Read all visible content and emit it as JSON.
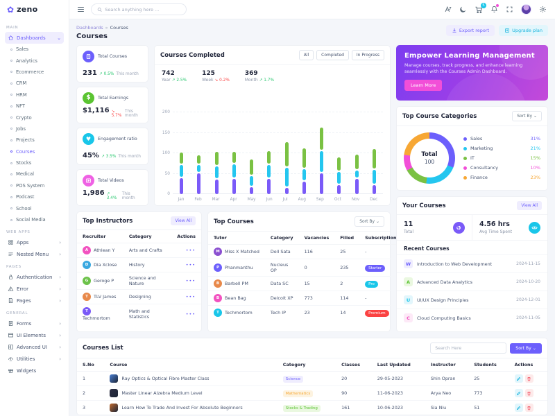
{
  "brand": {
    "name": "zeno"
  },
  "header": {
    "search_placeholder": "Search anything here ...",
    "cart_badge": "5"
  },
  "breadcrumb": {
    "root": "Dashboards",
    "separator": "»",
    "current": "Courses"
  },
  "page": {
    "title": "Courses",
    "export_label": "Export report",
    "upgrade_label": "Upgrade plan"
  },
  "sidebar": {
    "sections": [
      {
        "label": "MAIN",
        "items": [
          {
            "label": "Dashboards",
            "icon": "home",
            "active": true,
            "chevron": "down",
            "children": [
              "Sales",
              "Analytics",
              "Ecommerce",
              "CRM",
              "HRM",
              "NFT",
              "Crypto",
              "Jobs",
              "Projects",
              "Courses",
              "Stocks",
              "Medical",
              "POS System",
              "Podcast",
              "School",
              "Social Media"
            ],
            "active_child": "Courses"
          }
        ]
      },
      {
        "label": "WEB APPS",
        "items": [
          {
            "label": "Apps",
            "icon": "apps",
            "chevron": "right"
          },
          {
            "label": "Nested Menu",
            "icon": "nested",
            "chevron": "right"
          }
        ]
      },
      {
        "label": "PAGES",
        "items": [
          {
            "label": "Authentication",
            "icon": "lock",
            "chevron": "right"
          },
          {
            "label": "Error",
            "icon": "error",
            "chevron": "right"
          },
          {
            "label": "Pages",
            "icon": "pages",
            "chevron": "right"
          }
        ]
      },
      {
        "label": "GENERAL",
        "items": [
          {
            "label": "Forms",
            "icon": "forms",
            "chevron": "right"
          },
          {
            "label": "UI Elements",
            "icon": "ui",
            "chevron": "right"
          },
          {
            "label": "Advanced UI",
            "icon": "advui",
            "chevron": "right"
          },
          {
            "label": "Utilities",
            "icon": "utils",
            "chevron": "right"
          },
          {
            "label": "Widgets",
            "icon": "widgets",
            "chevron": ""
          }
        ]
      }
    ]
  },
  "stats": [
    {
      "title": "Total Courses",
      "value": "231",
      "change": "0.5%",
      "direction": "up",
      "period": "This month",
      "color": "#6c5ffc",
      "icon": "doc"
    },
    {
      "title": "Total Earnings",
      "value": "$1,116",
      "change": "5.7%",
      "direction": "down",
      "period": "This month",
      "color": "#5bc432",
      "icon": "dollar"
    },
    {
      "title": "Engagement ratio",
      "value": "45%",
      "change": "3.5%",
      "direction": "up",
      "period": "This month",
      "color": "#19c6e9",
      "icon": "heart"
    },
    {
      "title": "Total Videos",
      "value": "1,986",
      "change": "3.4%",
      "direction": "up",
      "period": "This month",
      "color": "#ef61e4",
      "icon": "video"
    }
  ],
  "chart_data": [
    {
      "type": "bar",
      "stacked": true,
      "title": "Courses Completed",
      "filters": [
        "All",
        "Completed",
        "In Progress"
      ],
      "kpis": [
        {
          "value": "742",
          "label": "Year",
          "change": "2.5%",
          "direction": "up"
        },
        {
          "value": "125",
          "label": "Week",
          "change": "0.2%",
          "direction": "down"
        },
        {
          "value": "369",
          "label": "Month",
          "change": "1.7%",
          "direction": "up"
        }
      ],
      "categories": [
        "Jan",
        "Feb",
        "Mar",
        "Apr",
        "May",
        "Jun",
        "Jul",
        "Aug",
        "Sep",
        "Oct",
        "Nov",
        "Dec"
      ],
      "series": [
        {
          "name": "Segment 1",
          "color": "#7a5af8",
          "values": [
            42,
            54,
            39,
            41,
            20,
            41,
            19,
            34,
            55,
            25,
            41,
            26
          ]
        },
        {
          "name": "Segment 2",
          "color": "#24c6ef",
          "values": [
            33,
            21,
            33,
            36,
            28,
            34,
            48,
            31,
            53,
            33,
            20,
            37
          ]
        },
        {
          "name": "Segment 3",
          "color": "#7ac143",
          "values": [
            30,
            24,
            35,
            30,
            40,
            33,
            63,
            50,
            59,
            35,
            39,
            51
          ]
        }
      ],
      "ylim": [
        0,
        200
      ],
      "yticks": [
        0,
        50,
        100,
        150,
        200
      ],
      "grid": "dashed-horizontal",
      "legend": "none"
    },
    {
      "type": "donut",
      "title": "Top Course Categories",
      "sort_label": "Sort By",
      "center_label": "Total",
      "center_value": "100",
      "slices": [
        {
          "label": "Sales",
          "value": 31,
          "display": "31%",
          "color": "#6c5ffc"
        },
        {
          "label": "Marketing",
          "value": 21,
          "display": "21%",
          "color": "#24c6ef"
        },
        {
          "label": "IT",
          "value": 15,
          "display": "15%",
          "color": "#7ac143"
        },
        {
          "label": "Consultancy",
          "value": 10,
          "display": "10%",
          "color": "#f24fd8"
        },
        {
          "label": "Finance",
          "value": 23,
          "display": "23%",
          "color": "#f7a734"
        }
      ]
    }
  ],
  "banner": {
    "title": "Empower Learning Management",
    "text": "Manage courses, track progress, and enhance learning seamlessly with the Courses Admin Dashboard.",
    "button": "Learn More"
  },
  "instructors": {
    "title": "Top Instructors",
    "view_all": "View All",
    "columns": [
      "Recruiter",
      "Category",
      "Actions"
    ],
    "rows": [
      {
        "name": "Athlean Y",
        "category": "Arts and Crafts",
        "avatar_color": "#f252c0"
      },
      {
        "name": "Dia Xclose",
        "category": "History",
        "avatar_color": "#3aa8e0"
      },
      {
        "name": "Geroge P",
        "category": "Science and Nature",
        "avatar_color": "#6cc24a"
      },
      {
        "name": "TLV James",
        "category": "Designing",
        "avatar_color": "#e8894a"
      },
      {
        "name": "Techmortom",
        "category": "Math and Statistics",
        "avatar_color": "#7a5af8"
      }
    ]
  },
  "top_courses": {
    "title": "Top Courses",
    "sort_label": "Sort By",
    "columns": [
      "Tutor",
      "Category",
      "Vacancies",
      "Filled",
      "Subscription"
    ],
    "rows": [
      {
        "tutor": "Miss X Matched",
        "category": "Dell Sata",
        "vacancies": "116",
        "filled": "25",
        "subscription": "-",
        "badge_color": "",
        "avatar_color": "#8a4fd0"
      },
      {
        "tutor": "Phanmanthu",
        "category": "Nucleus OP",
        "vacancies": "0",
        "filled": "235",
        "subscription": "Starter",
        "badge_color": "#6c5ffc",
        "avatar_color": "#6c5ffc"
      },
      {
        "tutor": "Barbell PM",
        "category": "Data SC",
        "vacancies": "15",
        "filled": "2",
        "subscription": "Pro",
        "badge_color": "#19c6e9",
        "avatar_color": "#e8894a"
      },
      {
        "tutor": "Bean Bag",
        "category": "Delcoit XP",
        "vacancies": "773",
        "filled": "114",
        "subscription": "-",
        "badge_color": "",
        "avatar_color": "#f252c0"
      },
      {
        "tutor": "Techmortom",
        "category": "Tech IP",
        "vacancies": "23",
        "filled": "14",
        "subscription": "Premium",
        "badge_color": "#fb4242",
        "avatar_color": "#19c6e9"
      }
    ]
  },
  "your_courses": {
    "title": "Your Courses",
    "view_all": "View All",
    "total_value": "11",
    "total_label": "Total",
    "avg_value": "4.56 hrs",
    "avg_label": "Avg Time Spent",
    "recent_title": "Recent Courses",
    "recent": [
      {
        "initial": "W",
        "name": "Introduction to Web Development",
        "date": "2024-11-15",
        "color": "#6c5ffc",
        "bg": "#efedfe"
      },
      {
        "initial": "A",
        "name": "Advanced Data Analytics",
        "date": "2024-10-20",
        "color": "#5bc432",
        "bg": "#eaf8e0"
      },
      {
        "initial": "U",
        "name": "UI/UX Design Principles",
        "date": "2024-12-01",
        "color": "#19c6e9",
        "bg": "#e2f6fc"
      },
      {
        "initial": "C",
        "name": "Cloud Computing Basics",
        "date": "2024-11-05",
        "color": "#f252c0",
        "bg": "#fde9f7"
      }
    ]
  },
  "courses_list": {
    "title": "Courses List",
    "search_placeholder": "Search Here",
    "sort_label": "Sort By",
    "columns": [
      "S.No",
      "Course",
      "Category",
      "Classes",
      "Last Updated",
      "Instructor",
      "Students",
      "Actions"
    ],
    "rows": [
      {
        "sno": "1",
        "course": "Ray Optics & Optical Fibre Master Class",
        "thumb": "#4a7fd4",
        "category": "Science",
        "cat_bg": "#efedfe",
        "cat_color": "#6c5ffc",
        "classes": "20",
        "updated": "29-05-2023",
        "instructor": "Shin Opran",
        "students": "25"
      },
      {
        "sno": "2",
        "course": "Master Linear Alzebra Medium Level",
        "thumb": "#2b2d42",
        "category": "Mathematics",
        "cat_bg": "#fdf3e0",
        "cat_color": "#f7a734",
        "classes": "90",
        "updated": "11-06-2023",
        "instructor": "Arya Neo",
        "students": "773"
      },
      {
        "sno": "3",
        "course": "Learn How To Trade And Invest For Absolute Beginners",
        "thumb": "#c26a2e",
        "category": "Stocks & Trading",
        "cat_bg": "#eaf8e0",
        "cat_color": "#5bc432",
        "classes": "161",
        "updated": "10-06-2023",
        "instructor": "Sia Niu",
        "students": "51"
      }
    ]
  }
}
